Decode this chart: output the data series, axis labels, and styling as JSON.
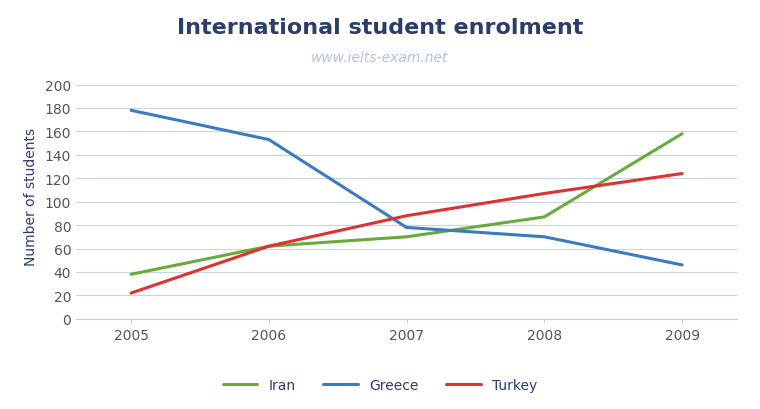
{
  "title": "International student enrolment",
  "watermark": "www.ielts-exam.net",
  "ylabel": "Number of students",
  "years": [
    2005,
    2006,
    2007,
    2008,
    2009
  ],
  "series": {
    "Iran": {
      "values": [
        38,
        62,
        70,
        87,
        158
      ],
      "color": "#6aaa3a",
      "linewidth": 2.2
    },
    "Greece": {
      "values": [
        178,
        153,
        78,
        70,
        46
      ],
      "color": "#3a7abf",
      "linewidth": 2.2
    },
    "Turkey": {
      "values": [
        22,
        62,
        88,
        107,
        124
      ],
      "color": "#e03030",
      "linewidth": 2.2
    }
  },
  "ylim": [
    0,
    210
  ],
  "yticks": [
    0,
    20,
    40,
    60,
    80,
    100,
    120,
    140,
    160,
    180,
    200
  ],
  "background_color": "#ffffff",
  "grid_color": "#c8d4e0",
  "title_color": "#2b3d6b",
  "title_fontsize": 16,
  "watermark_color": "#b0c4d8",
  "watermark_fontsize": 10,
  "axis_label_color": "#2b3d6b",
  "tick_label_color": "#555555",
  "tick_fontsize": 10,
  "ylabel_fontsize": 10,
  "legend_fontsize": 10
}
